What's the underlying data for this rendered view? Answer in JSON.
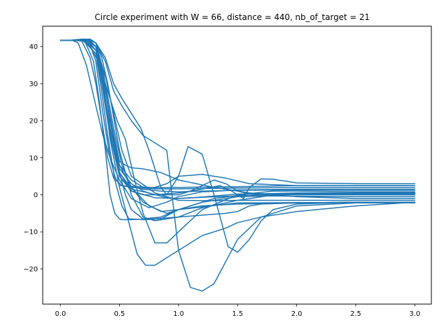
{
  "chart_data": {
    "type": "line",
    "title": "Circle experiment with W = 66, distance = 440, nb_of_target = 21",
    "xlabel": "",
    "ylabel": "",
    "xlim": [
      -0.15,
      3.14
    ],
    "ylim": [
      -29.5,
      45.5
    ],
    "xticks": [
      0.0,
      0.5,
      1.0,
      1.5,
      2.0,
      2.5,
      3.0
    ],
    "xtick_labels": [
      "0.0",
      "0.5",
      "1.0",
      "1.5",
      "2.0",
      "2.5",
      "3.0"
    ],
    "yticks": [
      -20,
      -10,
      0,
      10,
      20,
      30,
      40
    ],
    "ytick_labels": [
      "−20",
      "−10",
      "0",
      "10",
      "20",
      "30",
      "40"
    ],
    "grid": false,
    "legend": "none",
    "line_color": "#1f77b4",
    "series": [
      {
        "x": [
          0,
          0.08,
          0.18,
          0.24,
          0.3,
          0.36,
          0.42,
          0.46,
          0.5,
          0.6,
          0.8,
          1.0,
          1.5,
          2.0,
          2.5,
          3.0
        ],
        "y": [
          41.7,
          41.7,
          42.0,
          41.5,
          36,
          22,
          10,
          5,
          2.5,
          2.3,
          1.9,
          2.0,
          2.2,
          2.5,
          2.5,
          2.5
        ]
      },
      {
        "x": [
          0,
          0.1,
          0.18,
          0.25,
          0.3,
          0.35,
          0.4,
          0.45,
          0.52,
          0.6,
          0.8,
          1.0,
          1.5,
          2.0,
          2.5,
          3.0
        ],
        "y": [
          41.7,
          41.7,
          41.5,
          37,
          30,
          20,
          10,
          4.5,
          2.5,
          2.0,
          1.6,
          1.6,
          1.8,
          2.0,
          2.0,
          2.0
        ]
      },
      {
        "x": [
          0,
          0.1,
          0.15,
          0.22,
          0.3,
          0.36,
          0.42,
          0.5,
          0.6,
          0.75,
          0.9,
          1.0,
          1.2,
          1.5,
          2.0,
          2.5,
          3.0
        ],
        "y": [
          41.7,
          41.7,
          41.0,
          35,
          24,
          16,
          10,
          4,
          -1,
          -3.5,
          -2.0,
          -0.5,
          0.8,
          1.3,
          1.5,
          1.5,
          1.5
        ]
      },
      {
        "x": [
          0,
          0.1,
          0.2,
          0.3,
          0.35,
          0.42,
          0.5,
          0.58,
          0.7,
          0.85,
          1.0,
          1.2,
          1.5,
          2.0,
          2.5,
          3.0
        ],
        "y": [
          41.7,
          41.7,
          41.5,
          38,
          30,
          16,
          6,
          2.5,
          1.5,
          1.0,
          0.8,
          1.0,
          1.2,
          1.3,
          1.2,
          1.2
        ]
      },
      {
        "x": [
          0,
          0.12,
          0.22,
          0.3,
          0.36,
          0.42,
          0.5,
          0.6,
          0.75,
          0.9,
          1.0,
          1.3,
          1.6,
          2.0,
          2.5,
          3.0
        ],
        "y": [
          41.7,
          41.7,
          42.0,
          41,
          34,
          20,
          8,
          2,
          -3,
          -5.0,
          -4.0,
          -1.0,
          0.2,
          0.5,
          0.5,
          0.5
        ]
      },
      {
        "x": [
          0,
          0.1,
          0.2,
          0.3,
          0.36,
          0.43,
          0.5,
          0.6,
          0.8,
          1.0,
          1.2,
          1.5,
          2.0,
          2.5,
          3.0
        ],
        "y": [
          41.7,
          41.7,
          42.0,
          40,
          30,
          15,
          5,
          1,
          -0.8,
          -1.0,
          -0.6,
          0.2,
          0.2,
          0.1,
          0.0
        ]
      },
      {
        "x": [
          0,
          0.12,
          0.22,
          0.3,
          0.38,
          0.45,
          0.52,
          0.6,
          0.7,
          0.85,
          1.0,
          1.2,
          1.5,
          1.8,
          2.0,
          2.5,
          3.0
        ],
        "y": [
          41.7,
          41.7,
          41.8,
          39,
          30,
          18,
          8,
          2,
          -2.0,
          -4.5,
          -4.0,
          -2.0,
          -0.5,
          -0.3,
          -0.4,
          -0.5,
          -0.5
        ]
      },
      {
        "x": [
          0,
          0.1,
          0.22,
          0.3,
          0.36,
          0.44,
          0.5,
          0.55,
          0.6,
          0.7,
          0.85,
          1.0,
          1.3,
          1.6,
          2.0,
          2.5,
          3.0
        ],
        "y": [
          41.7,
          41.7,
          42.0,
          40,
          32,
          18,
          9,
          8,
          7.3,
          7.0,
          6.0,
          4.0,
          2.0,
          0.5,
          -0.5,
          -1.0,
          -1.0
        ]
      },
      {
        "x": [
          0,
          0.12,
          0.22,
          0.3,
          0.38,
          0.45,
          0.52,
          0.6,
          0.8,
          1.0,
          1.3,
          1.5,
          2.0,
          2.5,
          3.0
        ],
        "y": [
          41.7,
          41.7,
          42.0,
          40,
          32,
          22,
          12,
          5,
          0.5,
          -1.5,
          -1.6,
          -1.5,
          -1.5,
          -1.5,
          -1.5
        ]
      },
      {
        "x": [
          0,
          0.15,
          0.24,
          0.3,
          0.36,
          0.42,
          0.5,
          0.55,
          0.6,
          0.7,
          0.85,
          1.0,
          1.2,
          1.5,
          2.0,
          2.5,
          3.0
        ],
        "y": [
          41.7,
          41.7,
          42.0,
          40,
          34,
          20,
          6,
          0,
          -4,
          -6.5,
          -6.0,
          -4.0,
          -3.0,
          -2.5,
          -2.2,
          -2.0,
          -2.0
        ]
      },
      {
        "x": [
          0,
          0.1,
          0.2,
          0.3,
          0.34,
          0.4,
          0.46,
          0.52,
          0.58,
          0.7,
          0.85,
          1.0,
          1.5,
          2.0,
          2.5,
          3.0
        ],
        "y": [
          41.7,
          41.7,
          42.0,
          38,
          30,
          16,
          4,
          -3,
          -6.5,
          -6.7,
          -6.5,
          -4.0,
          -2.2,
          -2.1,
          -2.1,
          -2.1
        ]
      },
      {
        "x": [
          0,
          0.15,
          0.25,
          0.3,
          0.35,
          0.4,
          0.5,
          0.6,
          0.7,
          0.8,
          1.0,
          1.2,
          1.5,
          1.75,
          2.0,
          2.5,
          3.0
        ],
        "y": [
          41.7,
          41.7,
          42.0,
          41,
          37,
          30,
          12,
          0,
          -6,
          -7,
          -6,
          -3.5,
          -1.5,
          -0.3,
          0.2,
          0.3,
          0.3
        ]
      },
      {
        "x": [
          0,
          0.1,
          0.18,
          0.25,
          0.32,
          0.4,
          0.48,
          0.55,
          0.62,
          0.7,
          0.8,
          0.9,
          1.0,
          1.2,
          1.5,
          1.8,
          2.0,
          2.5,
          3.0
        ],
        "y": [
          41.7,
          41.7,
          41.8,
          40,
          36,
          28,
          20,
          15,
          5,
          -5,
          -13,
          -13,
          -10,
          -4,
          0,
          1.0,
          1.0,
          0.8,
          0.8
        ]
      },
      {
        "x": [
          0,
          0.1,
          0.2,
          0.3,
          0.36,
          0.42,
          0.5,
          0.55,
          0.6,
          0.65,
          0.72,
          0.8,
          0.9,
          1.0,
          1.2,
          1.4,
          1.5,
          1.7,
          2.0,
          2.5,
          3.0
        ],
        "y": [
          41.7,
          41.7,
          42.0,
          40,
          32,
          15,
          2,
          -4,
          -10,
          -16,
          -19,
          -19,
          -17,
          -15,
          -11,
          -9,
          -7.5,
          -6,
          -4.5,
          -3,
          -2.0
        ]
      },
      {
        "x": [
          0,
          0.15,
          0.25,
          0.3,
          0.38,
          0.45,
          0.52,
          0.6,
          0.7,
          0.8,
          0.9,
          1.0,
          1.1,
          1.2,
          1.3,
          1.4,
          1.5,
          1.7,
          2.0,
          2.5,
          3.0
        ],
        "y": [
          41.7,
          41.7,
          42.0,
          41,
          36,
          28,
          24,
          20,
          16,
          14,
          12,
          -15,
          -25,
          -26,
          -24,
          -18,
          -12,
          -6,
          -3,
          -2.2,
          -2.2
        ]
      },
      {
        "x": [
          0,
          0.12,
          0.24,
          0.3,
          0.38,
          0.45,
          0.52,
          0.6,
          0.68,
          0.75,
          0.85,
          0.9,
          1.0,
          1.08,
          1.2,
          1.3,
          1.42,
          1.5,
          1.6,
          1.7,
          1.8,
          2.0,
          2.5,
          3.0
        ],
        "y": [
          41.7,
          41.7,
          42.0,
          41,
          37,
          30,
          26,
          22,
          18,
          12,
          2,
          0,
          5,
          13,
          11,
          0,
          -14,
          -15.5,
          -12,
          -7,
          -4,
          -2.5,
          -2.0,
          -2.0
        ]
      },
      {
        "x": [
          0,
          0.1,
          0.2,
          0.28,
          0.33,
          0.38,
          0.42,
          0.46,
          0.5,
          0.52,
          0.6,
          0.8,
          1.0,
          1.2,
          1.4,
          1.5,
          1.6,
          1.7,
          2.0,
          2.5,
          3.0
        ],
        "y": [
          41.7,
          41.7,
          42.0,
          36,
          25,
          12,
          0,
          -5,
          -6.5,
          -6.7,
          -6.7,
          -6.5,
          -6,
          -5.5,
          -5,
          -4.5,
          -3,
          -2.5,
          -2.2,
          -2.0,
          -2.0
        ]
      },
      {
        "x": [
          0,
          0.1,
          0.2,
          0.3,
          0.35,
          0.42,
          0.5,
          0.6,
          0.7,
          0.8,
          1.0,
          1.1,
          1.2,
          1.3,
          1.4,
          1.5,
          1.6,
          1.7,
          2.0,
          2.5,
          3.0
        ],
        "y": [
          41.7,
          41.7,
          42.0,
          40,
          32,
          18,
          7,
          3,
          1,
          0,
          0,
          1,
          2.5,
          4,
          3,
          1,
          0.2,
          0,
          0,
          0,
          0
        ]
      },
      {
        "x": [
          0,
          0.12,
          0.22,
          0.3,
          0.36,
          0.42,
          0.5,
          0.6,
          0.7,
          0.8,
          1.0,
          1.2,
          1.35,
          1.45,
          1.55,
          1.6,
          1.7,
          1.8,
          2.0,
          2.5,
          3.0
        ],
        "y": [
          41.7,
          41.7,
          42.0,
          39,
          30,
          18,
          6,
          1,
          0,
          0,
          0.5,
          1.5,
          2.5,
          1,
          -1,
          2,
          4.3,
          4.2,
          3.2,
          3.0,
          3.0
        ]
      },
      {
        "x": [
          0,
          0.1,
          0.22,
          0.3,
          0.36,
          0.42,
          0.5,
          0.6,
          0.7,
          0.8,
          0.9,
          1.0,
          1.2,
          1.4,
          1.6,
          2.0,
          2.5,
          3.0
        ],
        "y": [
          41.7,
          41.7,
          42.0,
          40,
          33,
          20,
          8,
          4,
          2,
          2,
          3,
          5,
          5.5,
          4.5,
          3,
          2.5,
          2.5,
          2.5
        ]
      },
      {
        "x": [
          0,
          0.1,
          0.2,
          0.3,
          0.36,
          0.42,
          0.5,
          0.6,
          0.75,
          0.9,
          1.0,
          1.3,
          1.5,
          2.0,
          2.5,
          3.0
        ],
        "y": [
          41.7,
          41.7,
          41.8,
          39,
          30,
          16,
          5,
          1.5,
          0.5,
          -0.8,
          -1.0,
          -0.5,
          -0.3,
          0.2,
          0.5,
          0.5
        ]
      }
    ]
  }
}
